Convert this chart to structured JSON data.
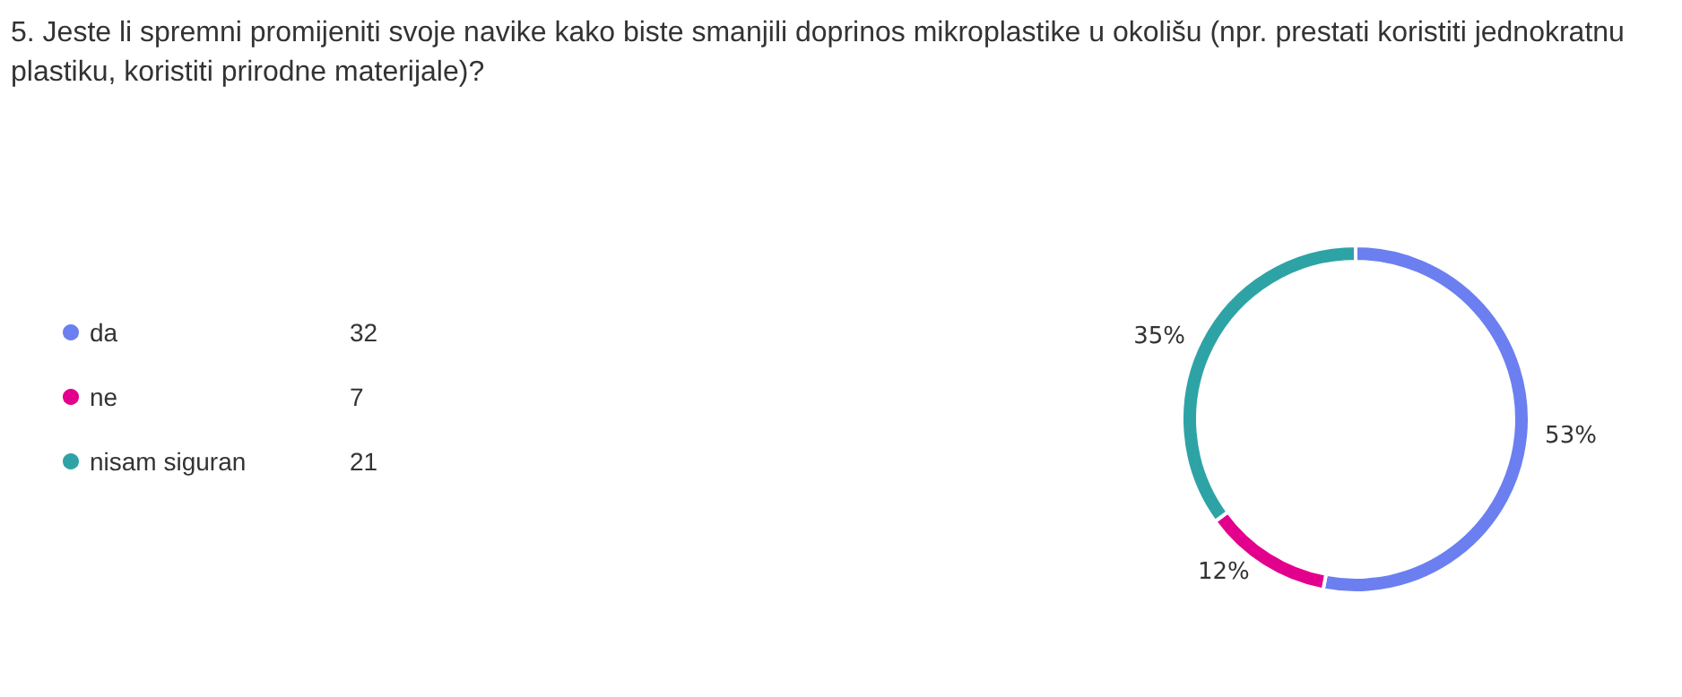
{
  "chart_data": {
    "type": "donut",
    "title": "5. Jeste li spremni promijeniti svoje navike kako biste smanjili doprinos mikroplastike u okolišu (npr. prestati koristiti jednokratnu plastiku, koristiti prirodne materijale)?",
    "categories": [
      "da",
      "ne",
      "nisam siguran"
    ],
    "values": [
      53,
      12,
      35
    ],
    "colors": [
      "#6b7ff0",
      "#e3008c",
      "#2ea3a6"
    ],
    "value_labels": [
      "53%",
      "12%",
      "35%"
    ],
    "annotations": [
      {
        "text": "32",
        "x": "da"
      },
      {
        "text": "7",
        "x": "ne"
      },
      {
        "text": "21",
        "x": "nisam siguran"
      }
    ],
    "legend": "left"
  }
}
